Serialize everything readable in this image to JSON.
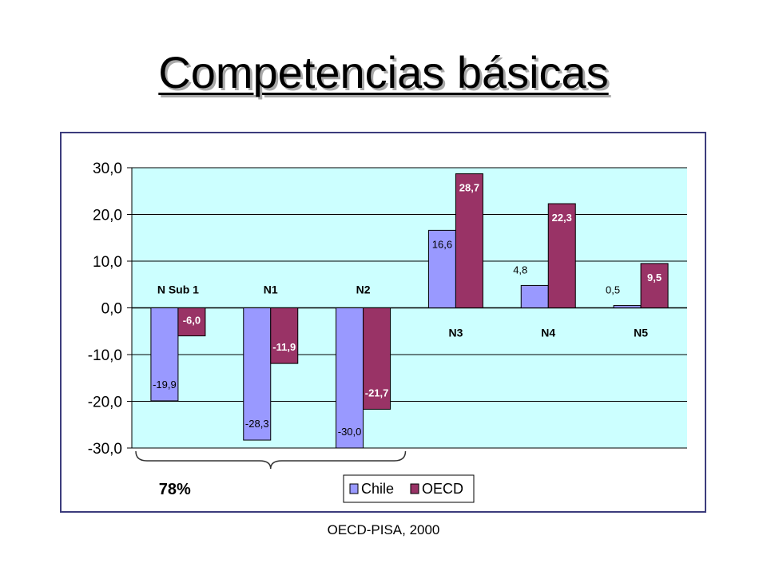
{
  "title": "Competencias básicas",
  "footer": "OECD-PISA, 2000",
  "colors": {
    "plot_background": "#ccffff",
    "chile": "#9999ff",
    "oecd": "#993366",
    "frame": "#3c3c7c",
    "gridline": "#000000"
  },
  "chart_data": {
    "type": "bar",
    "title": "",
    "xlabel": "",
    "ylabel": "",
    "categories": [
      "N Sub 1",
      "N1",
      "N2",
      "N3",
      "N4",
      "N5"
    ],
    "series": [
      {
        "name": "Chile",
        "values": [
          -19.9,
          -28.3,
          -30.0,
          16.6,
          4.8,
          0.5
        ]
      },
      {
        "name": "OECD",
        "values": [
          -6.0,
          -11.9,
          -21.7,
          28.7,
          22.3,
          9.5
        ]
      }
    ],
    "data_labels": {
      "Chile": [
        "-19,9",
        "-28,3",
        "-30,0",
        "16,6",
        "4,8",
        "0,5"
      ],
      "OECD": [
        "-6,0",
        "-11,9",
        "-21,7",
        "28,7",
        "22,3",
        "9,5"
      ]
    },
    "ylim": [
      -30,
      30
    ],
    "yticks": [
      30,
      20,
      10,
      0,
      -10,
      -20,
      -30
    ],
    "ytick_labels": [
      "30,0",
      "20,0",
      "10,0",
      "0,0",
      "-10,0",
      "-20,0",
      "-30,0"
    ],
    "grid": true,
    "legend_position": "bottom-center",
    "annotation": {
      "text": "78%",
      "spans": [
        "N Sub 1",
        "N1",
        "N2"
      ]
    }
  }
}
